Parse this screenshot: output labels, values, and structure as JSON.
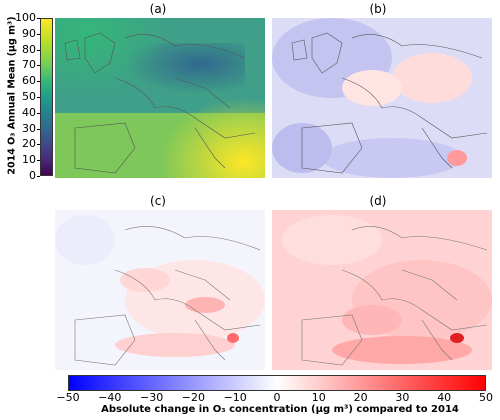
{
  "panels": [
    {
      "id": "a",
      "label": "(a)"
    },
    {
      "id": "b",
      "label": "(b)"
    },
    {
      "id": "c",
      "label": "(c)"
    },
    {
      "id": "d",
      "label": "(d)"
    }
  ],
  "colorbar_vertical": {
    "label": "2014 O₃ Annual Mean (μg m³)",
    "ticks": [
      "0",
      "10",
      "20",
      "30",
      "40",
      "50",
      "60",
      "70",
      "80",
      "90",
      "100"
    ],
    "range": [
      0,
      100
    ],
    "colormap": "viridis"
  },
  "colorbar_horizontal": {
    "label": "Absolute change in O₃ concentration (μg m³) compared to 2014",
    "ticks": [
      "−50",
      "−40",
      "−30",
      "−20",
      "−10",
      "0",
      "10",
      "20",
      "30",
      "40",
      "50"
    ],
    "range": [
      -50,
      50
    ],
    "colormap": "bwr"
  },
  "colors": {
    "low_blue": "#0000ff",
    "high_red": "#ff0000",
    "coast": "#666666"
  }
}
